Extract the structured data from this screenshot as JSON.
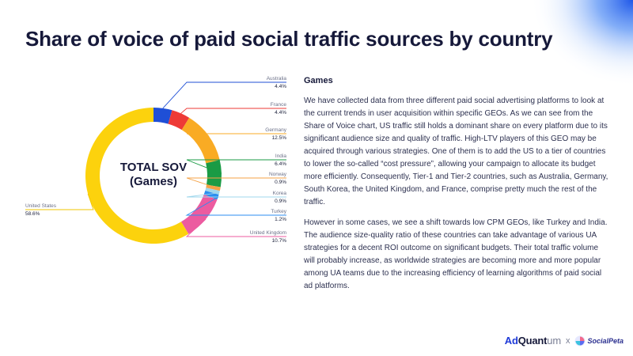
{
  "page": {
    "title": "Share of voice of paid social traffic sources by country"
  },
  "chart_data": {
    "type": "donut",
    "center_label_line1": "TOTAL SOV",
    "center_label_line2": "(Games)",
    "slices": [
      {
        "name": "Australia",
        "label": "4.4%",
        "value": 4.4,
        "color": "#1f4fd6"
      },
      {
        "name": "France",
        "label": "4.4%",
        "value": 4.4,
        "color": "#ee3a36"
      },
      {
        "name": "Germany",
        "label": "12.5%",
        "value": 12.5,
        "color": "#f9ab24"
      },
      {
        "name": "India",
        "label": "6.4%",
        "value": 6.4,
        "color": "#1a9b45"
      },
      {
        "name": "Norway",
        "label": "0.9%",
        "value": 0.9,
        "color": "#f4a246"
      },
      {
        "name": "Korea",
        "label": "0.9%",
        "value": 0.9,
        "color": "#9fd7ec"
      },
      {
        "name": "Turkey",
        "label": "1.2%",
        "value": 1.2,
        "color": "#2b8ef0"
      },
      {
        "name": "United Kingdom",
        "label": "10.7%",
        "value": 10.7,
        "color": "#ec5ba0"
      },
      {
        "name": "United States",
        "label": "58.6%",
        "value": 58.6,
        "color": "#fcd20d"
      }
    ]
  },
  "content": {
    "heading": "Games",
    "paragraph1": "We have collected data from three different paid social advertising platforms to look at the current trends in user acquisition within specific GEOs. As we can see from the Share of Voice chart, US traffic still holds a dominant share on every platform due to its significant audience size and quality of traffic. High-LTV players of this GEO may be acquired through various strategies. One of them is to add the US to a tier of countries to lower the so-called “cost pressure”, allowing your campaign to allocate its budget more efficiently. Consequently, Tier-1 and Tier-2 countries, such as Australia, Germany, South Korea, the United Kingdom, and France, comprise pretty much the rest of the traffic.",
    "paragraph2": "However in some cases, we see a shift towards low CPM GEOs, like Turkey and India. The audience size-quality ratio of these countries can take advantage of various UA strategies for a decent ROI outcome on significant budgets. Their total traffic volume will probably increase, as worldwide strategies are becoming more and more popular among UA teams due to the increasing efficiency of learning algorithms of paid social ad platforms."
  },
  "footer": {
    "brand1_ad": "Ad",
    "brand1_quant": "Quant",
    "brand1_um": "um",
    "separator": "x",
    "brand2": "SocialPeta"
  },
  "colors": {
    "title": "#16193a",
    "body_text": "#2d3150",
    "leader_default": "#4a5fd8"
  }
}
